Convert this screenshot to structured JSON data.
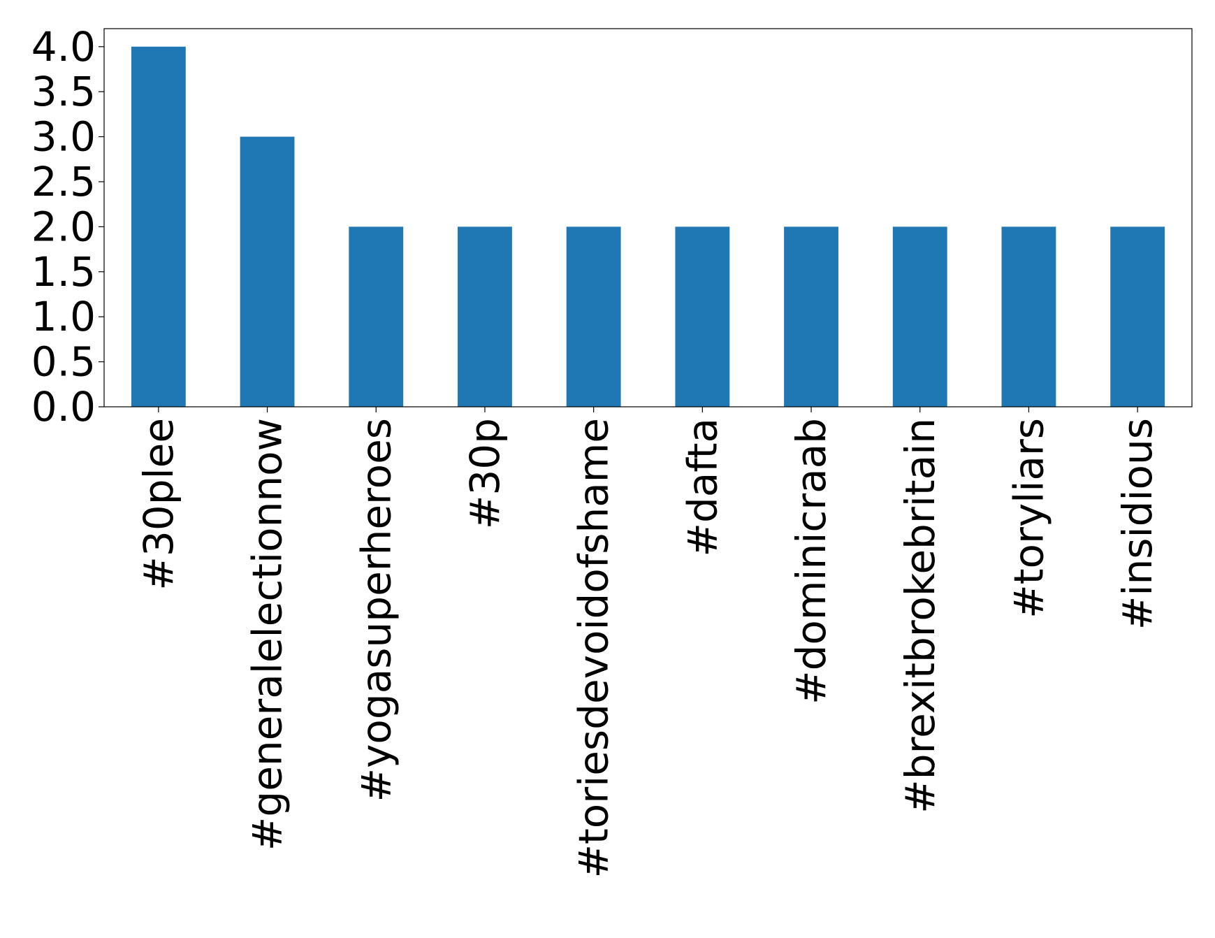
{
  "chart_data": {
    "type": "bar",
    "title": "",
    "xlabel": "",
    "ylabel": "",
    "categories": [
      "#30plee",
      "#generalelectionnow",
      "#yogasuperheroes",
      "#30p",
      "#toriesdevoidofshame",
      "#dafta",
      "#dominicraab",
      "#brexitbrokebritain",
      "#toryliars",
      "#insidious"
    ],
    "values": [
      4,
      3,
      2,
      2,
      2,
      2,
      2,
      2,
      2,
      2
    ],
    "ylim": [
      0,
      4.2
    ],
    "yticks": [
      "0.0",
      "0.5",
      "1.0",
      "1.5",
      "2.0",
      "2.5",
      "3.0",
      "3.5",
      "4.0"
    ],
    "grid": false,
    "bar_color": "#1f77b4"
  }
}
